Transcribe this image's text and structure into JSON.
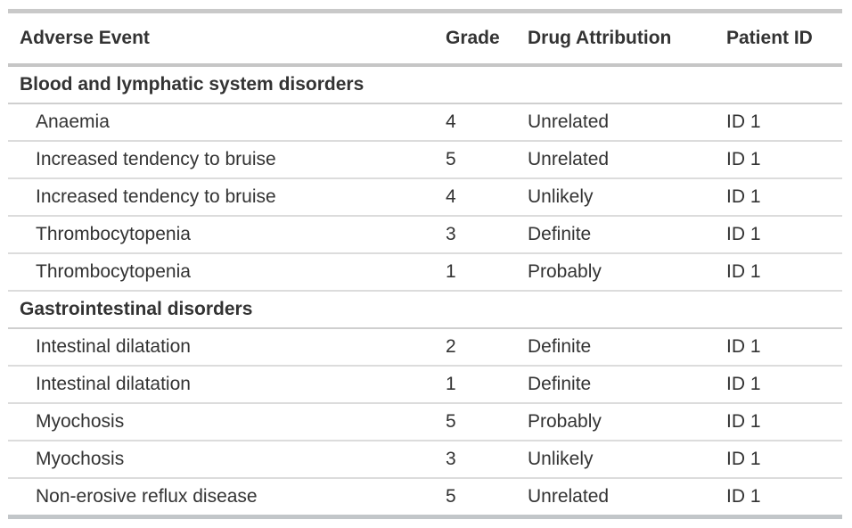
{
  "table": {
    "columns": [
      "Adverse Event",
      "Grade",
      "Drug Attribution",
      "Patient ID"
    ],
    "groups": [
      {
        "label": "Blood and lymphatic system disorders",
        "rows": [
          [
            "Anaemia",
            "4",
            "Unrelated",
            "ID 1"
          ],
          [
            "Increased tendency to bruise",
            "5",
            "Unrelated",
            "ID 1"
          ],
          [
            "Increased tendency to bruise",
            "4",
            "Unlikely",
            "ID 1"
          ],
          [
            "Thrombocytopenia",
            "3",
            "Definite",
            "ID 1"
          ],
          [
            "Thrombocytopenia",
            "1",
            "Probably",
            "ID 1"
          ]
        ]
      },
      {
        "label": "Gastrointestinal disorders",
        "rows": [
          [
            "Intestinal dilatation",
            "2",
            "Definite",
            "ID 1"
          ],
          [
            "Intestinal dilatation",
            "1",
            "Definite",
            "ID 1"
          ],
          [
            "Myochosis",
            "5",
            "Probably",
            "ID 1"
          ],
          [
            "Myochosis",
            "3",
            "Unlikely",
            "ID 1"
          ],
          [
            "Non-erosive reflux disease",
            "5",
            "Unrelated",
            "ID 1"
          ]
        ]
      }
    ]
  },
  "colors": {
    "background": "#ffffff",
    "text": "#333333",
    "rule_heavy": "#c9c9c9",
    "rule_medium": "#cfcfcf",
    "rule_light": "#dcdcdc"
  }
}
